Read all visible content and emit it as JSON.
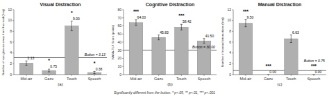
{
  "chart_data": [
    {
      "type": "bar",
      "title": "Visual Distraction",
      "subtitle": "(a)",
      "ylabel": "Number of eye glances away from the road (freq)",
      "categories": [
        "Mid-air",
        "Gaze",
        "Touch",
        "Speech"
      ],
      "values": [
        2.13,
        0.75,
        9.0,
        0.38
      ],
      "value_labels": [
        "2.13",
        "0.75",
        "9.00",
        "0.38"
      ],
      "errors": [
        0.4,
        0.25,
        0.9,
        0.2
      ],
      "baseline": 3.13,
      "baseline_label": "Button = 3.13",
      "baseline_color": "#555555",
      "significance": [
        null,
        "*",
        "*",
        "*"
      ],
      "ylim": [
        0,
        12
      ],
      "yticks": [
        0,
        2,
        4,
        6,
        8,
        10,
        12
      ],
      "color": "#b0b0b0",
      "grid": false,
      "data_labels": true
    },
    {
      "type": "bar",
      "title": "Cognitive Distraction",
      "subtitle": "(b)",
      "ylabel": "NASA-TLX Score (points)",
      "categories": [
        "Mid-air",
        "Gaze",
        "Touch",
        "Speech"
      ],
      "values": [
        64.0,
        45.83,
        58.42,
        41.5
      ],
      "value_labels": [
        "64.00",
        "45.83",
        "58.42",
        "41.50"
      ],
      "errors": [
        3.5,
        3.0,
        3.5,
        3.0
      ],
      "baseline": 30.0,
      "baseline_label": "Button = 30.00",
      "baseline_color": "#555555",
      "significance": [
        "***",
        null,
        "***",
        null
      ],
      "ylim": [
        0,
        80
      ],
      "yticks": [
        0,
        10,
        20,
        30,
        40,
        50,
        60,
        70,
        80
      ],
      "color": "#b0b0b0",
      "grid": false,
      "data_labels": true
    },
    {
      "type": "bar",
      "title": "Manual Distraction",
      "subtitle": "(c)",
      "ylabel": "Number of manual interactions (freq)",
      "categories": [
        "Mid-air",
        "Gaze",
        "Touch",
        "Speech"
      ],
      "values": [
        9.5,
        0.0,
        6.63,
        0.0
      ],
      "value_labels": [
        "9.50",
        "0.00",
        "6.63",
        "0.00"
      ],
      "errors": [
        0.65,
        0.0,
        0.7,
        0.0
      ],
      "baseline": 0.75,
      "baseline_label": "Button = 0.75",
      "baseline_color": "#555555",
      "significance": [
        "***",
        "***",
        null,
        "***"
      ],
      "ylim": [
        0,
        12
      ],
      "yticks": [
        0,
        2,
        4,
        6,
        8,
        10,
        12
      ],
      "color": "#b0b0b0",
      "grid": false,
      "data_labels": true
    }
  ],
  "footnote": "Significantly different from the button: * p<.05, ** p<.01, *** p<.001"
}
